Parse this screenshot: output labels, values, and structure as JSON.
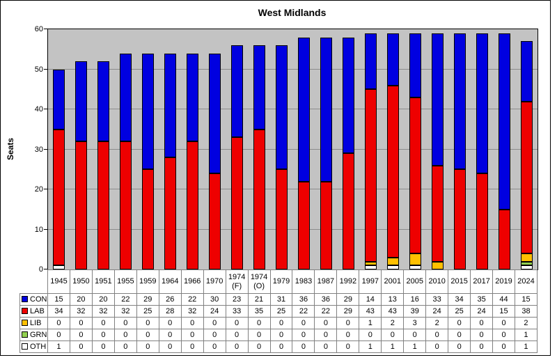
{
  "title": "West Midlands",
  "ylabel": "Seats",
  "chart_data": {
    "type": "bar",
    "stacked": true,
    "title": "West Midlands",
    "xlabel": "",
    "ylabel": "Seats",
    "ylim": [
      0,
      60
    ],
    "yticks": [
      0,
      10,
      20,
      30,
      40,
      50,
      60
    ],
    "grid": true,
    "plot_background": "#c3c3c3",
    "gridline_color": "#8c8c8c",
    "legend_position": "table-left",
    "categories": [
      "1945",
      "1950",
      "1951",
      "1955",
      "1959",
      "1964",
      "1966",
      "1970",
      "1974 (F)",
      "1974 (O)",
      "1979",
      "1983",
      "1987",
      "1992",
      "1997",
      "2001",
      "2005",
      "2010",
      "2015",
      "2017",
      "2019",
      "2024"
    ],
    "stack_order_bottom_to_top": [
      "OTH",
      "GRN",
      "LIB",
      "LAB",
      "CON"
    ],
    "series": [
      {
        "name": "CON",
        "color": "#0000e0",
        "values": [
          15,
          20,
          20,
          22,
          29,
          26,
          22,
          30,
          23,
          21,
          31,
          36,
          36,
          29,
          14,
          13,
          16,
          33,
          34,
          35,
          44,
          15
        ]
      },
      {
        "name": "LAB",
        "color": "#ee0000",
        "values": [
          34,
          32,
          32,
          32,
          25,
          28,
          32,
          24,
          33,
          35,
          25,
          22,
          22,
          29,
          43,
          43,
          39,
          24,
          25,
          24,
          15,
          38
        ]
      },
      {
        "name": "LIB",
        "color": "#ffc000",
        "values": [
          0,
          0,
          0,
          0,
          0,
          0,
          0,
          0,
          0,
          0,
          0,
          0,
          0,
          0,
          1,
          2,
          3,
          2,
          0,
          0,
          0,
          2
        ]
      },
      {
        "name": "GRN",
        "color": "#92d050",
        "values": [
          0,
          0,
          0,
          0,
          0,
          0,
          0,
          0,
          0,
          0,
          0,
          0,
          0,
          0,
          0,
          0,
          0,
          0,
          0,
          0,
          0,
          1
        ]
      },
      {
        "name": "OTH",
        "color": "#ffffff",
        "values": [
          1,
          0,
          0,
          0,
          0,
          0,
          0,
          0,
          0,
          0,
          0,
          0,
          0,
          0,
          1,
          1,
          1,
          0,
          0,
          0,
          0,
          1
        ]
      }
    ]
  }
}
